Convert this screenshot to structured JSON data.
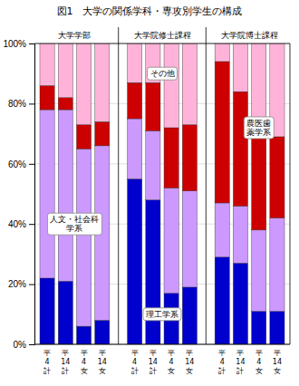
{
  "chart_data": {
    "type": "bar",
    "stacked": true,
    "title": "図1　大学の関係学科・専攻別学生の構成",
    "groups": [
      "大学学部",
      "大学院修士課程",
      "大学院博士課程"
    ],
    "categories": [
      "平\n4\n計",
      "平\n14\n計",
      "平\n4\n女",
      "平\n14\n女",
      "平\n4\n計",
      "平\n14\n計",
      "平\n4\n女",
      "平\n14\n女",
      "平\n4\n計",
      "平\n14\n計",
      "平\n4\n女",
      "平\n14\n女"
    ],
    "series": [
      {
        "color": "#0000cc",
        "values": [
          22,
          21,
          6,
          8,
          55,
          48,
          17,
          19,
          29,
          27,
          11,
          11
        ]
      },
      {
        "color": "#cc99ff",
        "values": [
          56,
          57,
          59,
          58,
          20,
          23,
          35,
          32,
          18,
          19,
          27,
          31
        ]
      },
      {
        "color": "#cc0000",
        "values": [
          8,
          4,
          8,
          8,
          12,
          16,
          20,
          22,
          47,
          38,
          35,
          27
        ]
      },
      {
        "color": "#ffb3d9",
        "values": [
          14,
          18,
          27,
          26,
          13,
          13,
          28,
          27,
          6,
          16,
          27,
          31
        ]
      }
    ],
    "annotations": [
      "人文・社会科\n学系",
      "理工学系",
      "その他",
      "農医歯\n薬学系"
    ],
    "ylim": [
      0,
      100
    ],
    "yticks": [
      {
        "value": 0,
        "label": "0%"
      },
      {
        "value": 20,
        "label": "20%"
      },
      {
        "value": 40,
        "label": "40%"
      },
      {
        "value": 60,
        "label": "60%"
      },
      {
        "value": 80,
        "label": "80%"
      },
      {
        "value": 100,
        "label": "100%"
      }
    ],
    "grid": true
  }
}
